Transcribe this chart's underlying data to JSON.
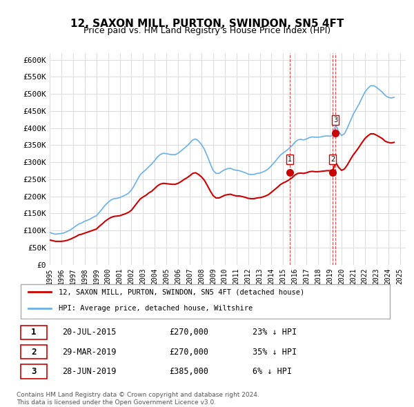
{
  "title": "12, SAXON MILL, PURTON, SWINDON, SN5 4FT",
  "subtitle": "Price paid vs. HM Land Registry's House Price Index (HPI)",
  "legend_property": "12, SAXON MILL, PURTON, SWINDON, SN5 4FT (detached house)",
  "legend_hpi": "HPI: Average price, detached house, Wiltshire",
  "footnote1": "Contains HM Land Registry data © Crown copyright and database right 2024.",
  "footnote2": "This data is licensed under the Open Government Licence v3.0.",
  "ylabel": "",
  "ylim": [
    0,
    620000
  ],
  "yticks": [
    0,
    50000,
    100000,
    150000,
    200000,
    250000,
    300000,
    350000,
    400000,
    450000,
    500000,
    550000,
    600000
  ],
  "ytick_labels": [
    "£0",
    "£50K",
    "£100K",
    "£150K",
    "£200K",
    "£250K",
    "£300K",
    "£350K",
    "£400K",
    "£450K",
    "£500K",
    "£550K",
    "£600K"
  ],
  "transactions": [
    {
      "num": 1,
      "date": "20-JUL-2015",
      "price": 270000,
      "pct": "23%",
      "dir": "↓",
      "x": 2015.55
    },
    {
      "num": 2,
      "date": "29-MAR-2019",
      "price": 270000,
      "pct": "35%",
      "dir": "↓",
      "x": 2019.25
    },
    {
      "num": 3,
      "date": "28-JUN-2019",
      "price": 385000,
      "pct": "6%",
      "dir": "↓",
      "x": 2019.5
    }
  ],
  "hpi_color": "#6ab0e8",
  "property_color": "#cc0000",
  "dashed_line_color": "#cc0000",
  "background_color": "#ffffff",
  "grid_color": "#dddddd",
  "hpi_data_x": [
    1995.0,
    1995.25,
    1995.5,
    1995.75,
    1996.0,
    1996.25,
    1996.5,
    1996.75,
    1997.0,
    1997.25,
    1997.5,
    1997.75,
    1998.0,
    1998.25,
    1998.5,
    1998.75,
    1999.0,
    1999.25,
    1999.5,
    1999.75,
    2000.0,
    2000.25,
    2000.5,
    2000.75,
    2001.0,
    2001.25,
    2001.5,
    2001.75,
    2002.0,
    2002.25,
    2002.5,
    2002.75,
    2003.0,
    2003.25,
    2003.5,
    2003.75,
    2004.0,
    2004.25,
    2004.5,
    2004.75,
    2005.0,
    2005.25,
    2005.5,
    2005.75,
    2006.0,
    2006.25,
    2006.5,
    2006.75,
    2007.0,
    2007.25,
    2007.5,
    2007.75,
    2008.0,
    2008.25,
    2008.5,
    2008.75,
    2009.0,
    2009.25,
    2009.5,
    2009.75,
    2010.0,
    2010.25,
    2010.5,
    2010.75,
    2011.0,
    2011.25,
    2011.5,
    2011.75,
    2012.0,
    2012.25,
    2012.5,
    2012.75,
    2013.0,
    2013.25,
    2013.5,
    2013.75,
    2014.0,
    2014.25,
    2014.5,
    2014.75,
    2015.0,
    2015.25,
    2015.5,
    2015.75,
    2016.0,
    2016.25,
    2016.5,
    2016.75,
    2017.0,
    2017.25,
    2017.5,
    2017.75,
    2018.0,
    2018.25,
    2018.5,
    2018.75,
    2019.0,
    2019.25,
    2019.5,
    2019.75,
    2020.0,
    2020.25,
    2020.5,
    2020.75,
    2021.0,
    2021.25,
    2021.5,
    2021.75,
    2022.0,
    2022.25,
    2022.5,
    2022.75,
    2023.0,
    2023.25,
    2023.5,
    2023.75,
    2024.0,
    2024.25,
    2024.5
  ],
  "hpi_data_y": [
    94000,
    91000,
    89000,
    90000,
    91000,
    93000,
    97000,
    101000,
    107000,
    113000,
    119000,
    122000,
    127000,
    130000,
    134000,
    139000,
    143000,
    153000,
    163000,
    174000,
    182000,
    189000,
    193000,
    194000,
    196000,
    200000,
    204000,
    209000,
    218000,
    232000,
    248000,
    263000,
    271000,
    278000,
    287000,
    295000,
    305000,
    316000,
    323000,
    326000,
    325000,
    323000,
    322000,
    322000,
    326000,
    333000,
    340000,
    347000,
    356000,
    365000,
    368000,
    362000,
    352000,
    338000,
    318000,
    296000,
    276000,
    267000,
    267000,
    273000,
    278000,
    281000,
    282000,
    278000,
    276000,
    275000,
    272000,
    269000,
    265000,
    264000,
    264000,
    267000,
    268000,
    271000,
    275000,
    281000,
    290000,
    299000,
    310000,
    320000,
    327000,
    333000,
    340000,
    348000,
    358000,
    365000,
    367000,
    365000,
    368000,
    372000,
    374000,
    373000,
    373000,
    374000,
    376000,
    377000,
    376000,
    378000,
    410000,
    390000,
    378000,
    383000,
    400000,
    420000,
    440000,
    455000,
    470000,
    488000,
    505000,
    516000,
    524000,
    524000,
    519000,
    512000,
    505000,
    495000,
    490000,
    488000,
    490000
  ],
  "prop_data_x": [
    1995.0,
    1995.25,
    1995.5,
    1995.75,
    1996.0,
    1996.25,
    1996.5,
    1996.75,
    1997.0,
    1997.25,
    1997.5,
    1997.75,
    1998.0,
    1998.25,
    1998.5,
    1998.75,
    1999.0,
    1999.25,
    1999.5,
    1999.75,
    2000.0,
    2000.25,
    2000.5,
    2000.75,
    2001.0,
    2001.25,
    2001.5,
    2001.75,
    2002.0,
    2002.25,
    2002.5,
    2002.75,
    2003.0,
    2003.25,
    2003.5,
    2003.75,
    2004.0,
    2004.25,
    2004.5,
    2004.75,
    2005.0,
    2005.25,
    2005.5,
    2005.75,
    2006.0,
    2006.25,
    2006.5,
    2006.75,
    2007.0,
    2007.25,
    2007.5,
    2007.75,
    2008.0,
    2008.25,
    2008.5,
    2008.75,
    2009.0,
    2009.25,
    2009.5,
    2009.75,
    2010.0,
    2010.25,
    2010.5,
    2010.75,
    2011.0,
    2011.25,
    2011.5,
    2011.75,
    2012.0,
    2012.25,
    2012.5,
    2012.75,
    2013.0,
    2013.25,
    2013.5,
    2013.75,
    2014.0,
    2014.25,
    2014.5,
    2014.75,
    2015.0,
    2015.25,
    2015.5,
    2015.75,
    2016.0,
    2016.25,
    2016.5,
    2016.75,
    2017.0,
    2017.25,
    2017.5,
    2017.75,
    2018.0,
    2018.25,
    2018.5,
    2018.75,
    2019.0,
    2019.25,
    2019.5,
    2019.75,
    2020.0,
    2020.25,
    2020.5,
    2020.75,
    2021.0,
    2021.25,
    2021.5,
    2021.75,
    2022.0,
    2022.25,
    2022.5,
    2022.75,
    2023.0,
    2023.25,
    2023.5,
    2023.75,
    2024.0,
    2024.25,
    2024.5
  ],
  "prop_data_y": [
    72000,
    70000,
    68000,
    68000,
    68000,
    69000,
    71000,
    74000,
    78000,
    82000,
    87000,
    89000,
    92000,
    95000,
    98000,
    101000,
    104000,
    112000,
    119000,
    127000,
    133000,
    138000,
    141000,
    142000,
    143000,
    146000,
    149000,
    153000,
    159000,
    170000,
    181000,
    192000,
    198000,
    203000,
    210000,
    215000,
    223000,
    231000,
    236000,
    238000,
    237000,
    236000,
    235000,
    235000,
    238000,
    243000,
    249000,
    254000,
    260000,
    267000,
    269000,
    264000,
    257000,
    247000,
    232000,
    216000,
    202000,
    195000,
    195000,
    199000,
    203000,
    205000,
    206000,
    203000,
    201000,
    201000,
    199000,
    197000,
    194000,
    193000,
    193000,
    195000,
    196000,
    198000,
    201000,
    205000,
    212000,
    219000,
    226000,
    234000,
    239000,
    243000,
    248000,
    254000,
    262000,
    267000,
    268000,
    267000,
    269000,
    272000,
    273000,
    272000,
    272000,
    273000,
    274000,
    275000,
    275000,
    276000,
    299000,
    285000,
    276000,
    280000,
    292000,
    307000,
    321000,
    332000,
    344000,
    357000,
    369000,
    377000,
    383000,
    383000,
    379000,
    374000,
    369000,
    361000,
    358000,
    356000,
    358000
  ]
}
